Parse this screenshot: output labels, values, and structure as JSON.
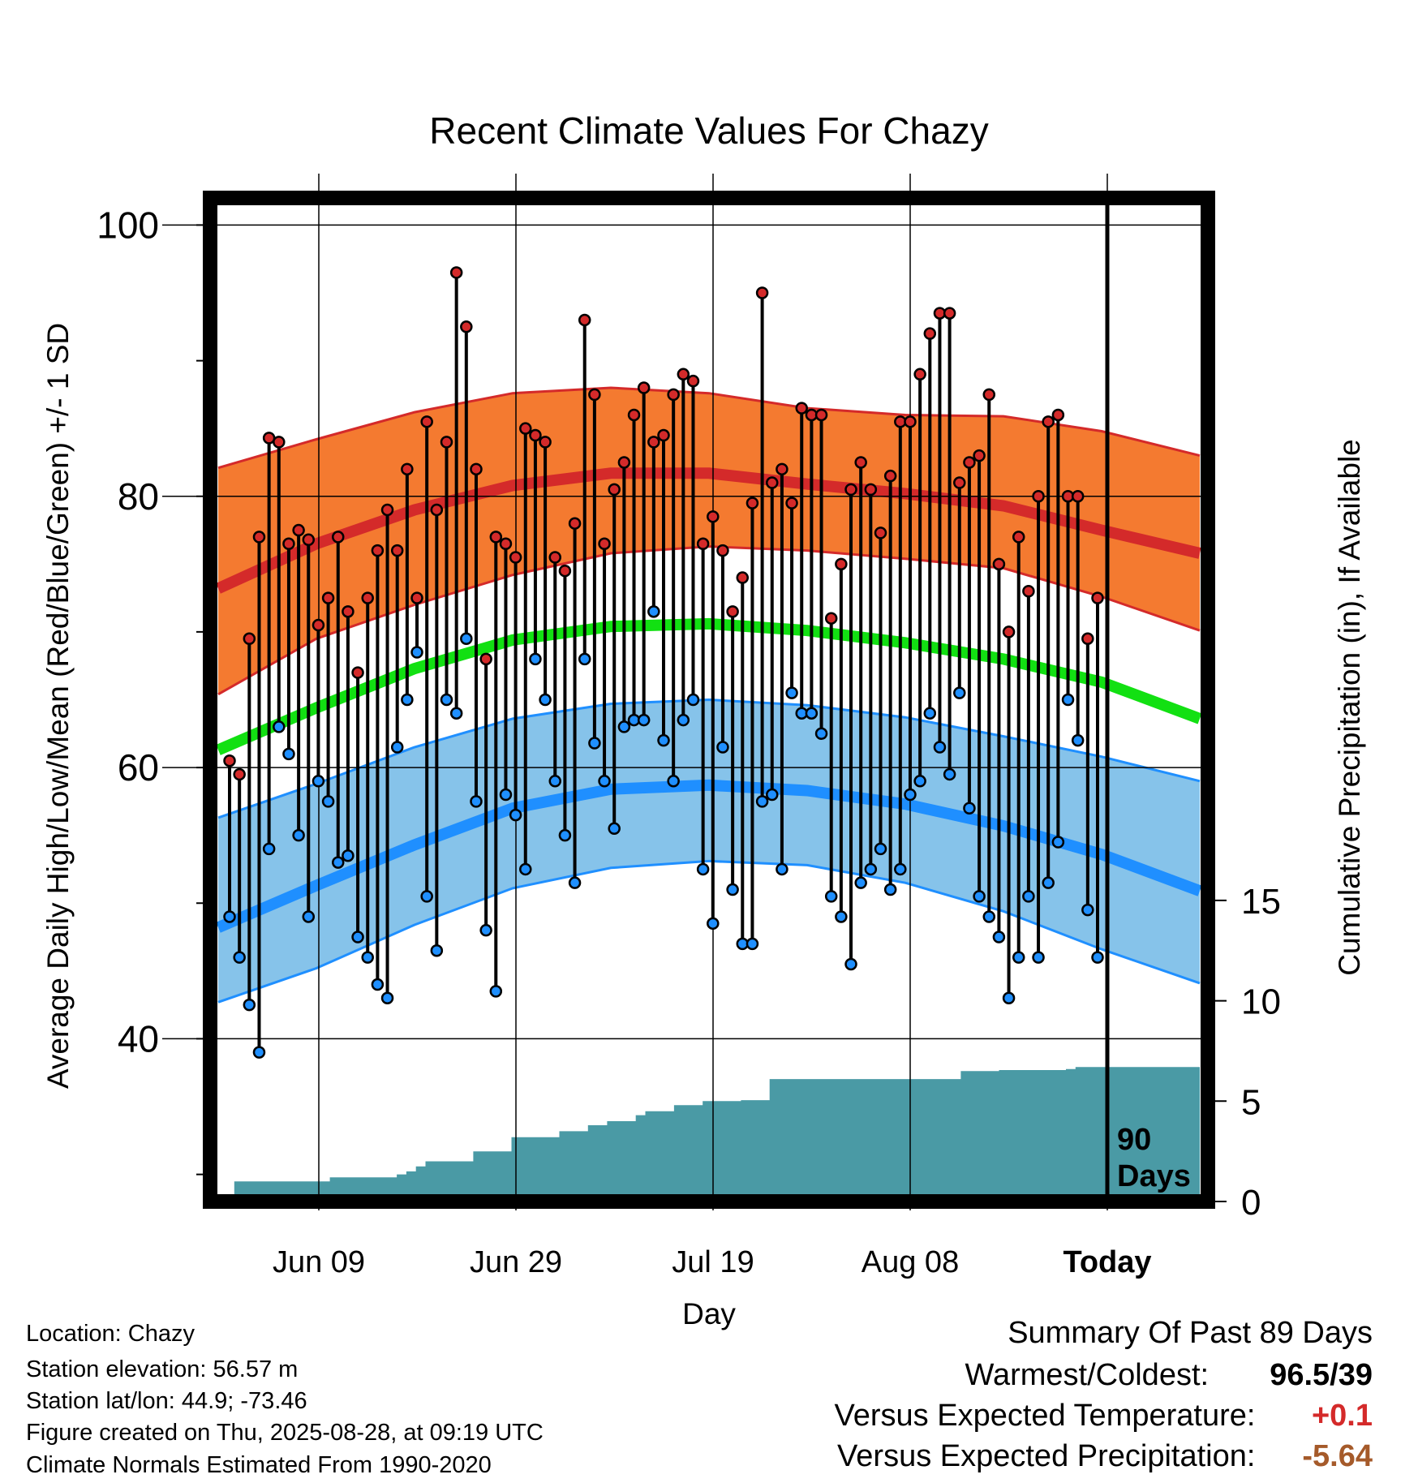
{
  "chart_data": {
    "type": "line",
    "title": "Recent Climate Values For Chazy",
    "xlabel": "Day",
    "ylabel": "Average Daily High/Low/Mean (Red/Blue/Green) +/- 1 SD",
    "ylabel_right": "Cumulative Precipitation (in), If Available",
    "x_ticks": [
      "Jun 09",
      "Jun 29",
      "Jul 19",
      "Aug 08",
      "Today"
    ],
    "y_ticks": [
      "40",
      "60",
      "80",
      "100"
    ],
    "y2_ticks": [
      "0",
      "5",
      "10",
      "15"
    ],
    "ylim": [
      28,
      102
    ],
    "y2lim": [
      0,
      50
    ],
    "grid": true,
    "period_label_1": "90",
    "period_label_2": "Days",
    "colors": {
      "high": "#d42a2a",
      "high_band": "#f47a30",
      "low": "#1f8fff",
      "low_band": "#86c3ea",
      "mean": "#12e012",
      "precip": "#4a9aa5"
    },
    "normals": {
      "day": [
        0,
        10,
        20,
        30,
        40,
        50,
        60,
        70,
        80,
        90,
        100
      ],
      "high": [
        73.2,
        76.5,
        79.0,
        80.8,
        81.7,
        81.7,
        80.9,
        80.2,
        79.3,
        77.5,
        75.8
      ],
      "high_band_upper": [
        82.1,
        84.2,
        86.2,
        87.6,
        88.0,
        87.6,
        86.5,
        86.0,
        85.9,
        84.8,
        83.0
      ],
      "high_band_lower": [
        65.4,
        69.5,
        72.0,
        74.2,
        75.8,
        76.3,
        76.0,
        75.4,
        74.7,
        72.6,
        70.1
      ],
      "mean": [
        61.3,
        64.4,
        67.3,
        69.4,
        70.4,
        70.6,
        70.1,
        69.2,
        68.0,
        66.3,
        63.6
      ],
      "low": [
        48.2,
        51.3,
        54.3,
        57.0,
        58.4,
        58.7,
        58.3,
        57.3,
        55.7,
        53.6,
        50.9
      ],
      "low_band_upper": [
        56.3,
        58.8,
        61.5,
        63.6,
        64.7,
        65.0,
        64.6,
        63.7,
        62.3,
        60.8,
        59.0
      ],
      "low_band_lower": [
        42.7,
        45.2,
        48.4,
        51.1,
        52.6,
        53.1,
        52.8,
        51.5,
        49.4,
        46.6,
        44.1
      ]
    },
    "series": [
      {
        "name": "High",
        "values": [
          60.5,
          59.5,
          69.5,
          77,
          84.3,
          84,
          76.5,
          77.5,
          76.8,
          70.5,
          72.5,
          77,
          71.5,
          67,
          72.5,
          76,
          79,
          76,
          82,
          72.5,
          85.5,
          79,
          84,
          96.5,
          92.5,
          82,
          68,
          77,
          76.5,
          75.5,
          85,
          84.5,
          84,
          75.5,
          74.5,
          78,
          93,
          87.5,
          76.5,
          80.5,
          82.5,
          86,
          88,
          84,
          84.5,
          87.5,
          89,
          88.5,
          76.5,
          78.5,
          76,
          71.5,
          74,
          79.5,
          95,
          81,
          82,
          79.5,
          86.5,
          86,
          86,
          71,
          75,
          80.5,
          82.5,
          80.5,
          77.3,
          81.5,
          85.5,
          85.5,
          89,
          92,
          93.5,
          93.5,
          81,
          82.5,
          83,
          87.5,
          75,
          70,
          77,
          73,
          80,
          85.5,
          86,
          80,
          80,
          69.5,
          72.5
        ]
      },
      {
        "name": "Low",
        "values": [
          49,
          46,
          42.5,
          39,
          54,
          63,
          61,
          55,
          49,
          59,
          57.5,
          53,
          53.5,
          47.5,
          46,
          44,
          43,
          61.5,
          65,
          68.5,
          50.5,
          46.5,
          65,
          64,
          69.5,
          57.5,
          48,
          43.5,
          58,
          56.5,
          52.5,
          68,
          65,
          59,
          55,
          51.5,
          68,
          61.8,
          59,
          55.5,
          63,
          63.5,
          63.5,
          71.5,
          62,
          59,
          63.5,
          65,
          52.5,
          48.5,
          61.5,
          51,
          47,
          47,
          57.5,
          58,
          52.5,
          65.5,
          64,
          64,
          62.5,
          50.5,
          49,
          45.5,
          51.5,
          52.5,
          54,
          51,
          52.5,
          58,
          59,
          64,
          61.5,
          59.5,
          65.5,
          57,
          50.5,
          49,
          47.5,
          43,
          46,
          50.5,
          46,
          51.5,
          54.5,
          65,
          62,
          49.5,
          46
        ]
      },
      {
        "name": "Cumulative Precipitation",
        "values": [
          0,
          1,
          1,
          1,
          1,
          1,
          1,
          1,
          1,
          1,
          1,
          1.2,
          1.2,
          1.2,
          1.2,
          1.2,
          1.2,
          1.2,
          1.35,
          1.5,
          1.75,
          2,
          2,
          2,
          2,
          2,
          2.5,
          2.5,
          2.5,
          2.5,
          3.2,
          3.2,
          3.2,
          3.2,
          3.2,
          3.5,
          3.5,
          3.5,
          3.8,
          3.8,
          4,
          4,
          4,
          4.3,
          4.5,
          4.5,
          4.5,
          4.8,
          4.8,
          4.8,
          5,
          5,
          5,
          5,
          5.05,
          5.05,
          5.05,
          6.1,
          6.1,
          6.1,
          6.1,
          6.1,
          6.1,
          6.1,
          6.1,
          6.1,
          6.1,
          6.1,
          6.1,
          6.1,
          6.1,
          6.1,
          6.1,
          6.1,
          6.1,
          6.1,
          6.1,
          6.5,
          6.5,
          6.5,
          6.5,
          6.55,
          6.55,
          6.55,
          6.55,
          6.55,
          6.55,
          6.55,
          6.6,
          6.7,
          6.7,
          6.7,
          6.7,
          6.7,
          6.7,
          6.7,
          6.7,
          6.7,
          6.7,
          6.7,
          6.7,
          6.7
        ]
      }
    ]
  },
  "info": {
    "location": "Location: Chazy",
    "elevation": "Station elevation: 56.57 m",
    "latlon": "Station lat/lon: 44.9; -73.46",
    "created": "Figure created on Thu, 2025-08-28, at 09:19 UTC",
    "normals": "Climate Normals Estimated From 1990-2020"
  },
  "summary": {
    "title": "Summary Of Past 89 Days",
    "warm_cold_label": "Warmest/Coldest:",
    "warm_value": "96.5",
    "cold_value": "/39",
    "temp_label": "Versus Expected Temperature:",
    "temp_value": "+0.1",
    "temp_color": "#d42a2a",
    "precip_label": "Versus Expected Precipitation:",
    "precip_value": "-5.64",
    "precip_color": "#a55a2a"
  }
}
